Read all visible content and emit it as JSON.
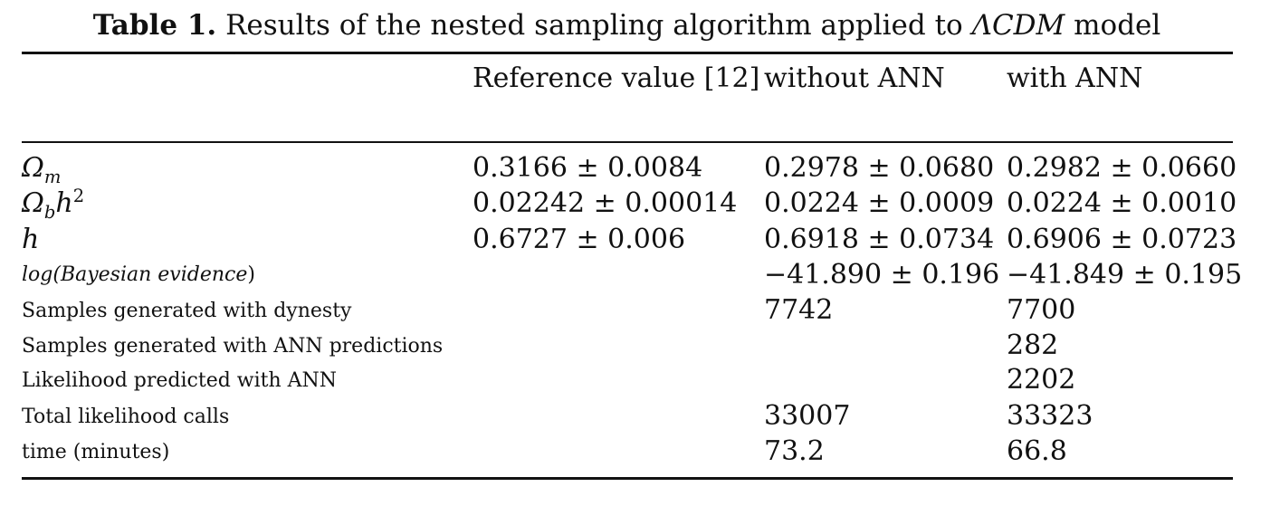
{
  "caption": {
    "label": "Table 1.",
    "text_before": "Results of the nested sampling algorithm applied to",
    "model": "ΛCDM",
    "text_after": "model"
  },
  "headers": [
    "",
    "Reference value [12]",
    "without ANN",
    "with ANN"
  ],
  "rows": [
    {
      "label_base": "Ω",
      "label_sub": "m",
      "label_mid": "",
      "label_sup": "",
      "ref": "0.3166 ± 0.0084",
      "without": "0.2978 ± 0.0680",
      "with": "0.2982 ± 0.0660"
    },
    {
      "label_base": "Ω",
      "label_sub": "b",
      "label_mid": "h",
      "label_sup": "2",
      "ref": "0.02242 ± 0.00014",
      "without": "0.0224 ± 0.0009",
      "with": "0.0224 ± 0.0010"
    },
    {
      "label": "h",
      "ref": "0.6727 ± 0.006",
      "without": "0.6918 ± 0.0734",
      "with": "0.6906 ± 0.0723"
    },
    {
      "label_prefix": "log(",
      "label_inner": "Bayesian evidence",
      "label_suffix": ")",
      "ref": "",
      "without": "−41.890 ± 0.196",
      "with": "−41.849 ± 0.195"
    },
    {
      "label": "Samples generated with dynesty",
      "ref": "",
      "without": "7742",
      "with": "7700"
    },
    {
      "label": "Samples generated with ANN predictions",
      "ref": "",
      "without": "",
      "with": "282"
    },
    {
      "label": "Likelihood predicted with ANN",
      "ref": "",
      "without": "",
      "with": "2202"
    },
    {
      "label": "Total likelihood calls",
      "ref": "",
      "without": "33007",
      "with": "33323"
    },
    {
      "label": "time (minutes)",
      "ref": "",
      "without": "73.2",
      "with": "66.8"
    }
  ]
}
